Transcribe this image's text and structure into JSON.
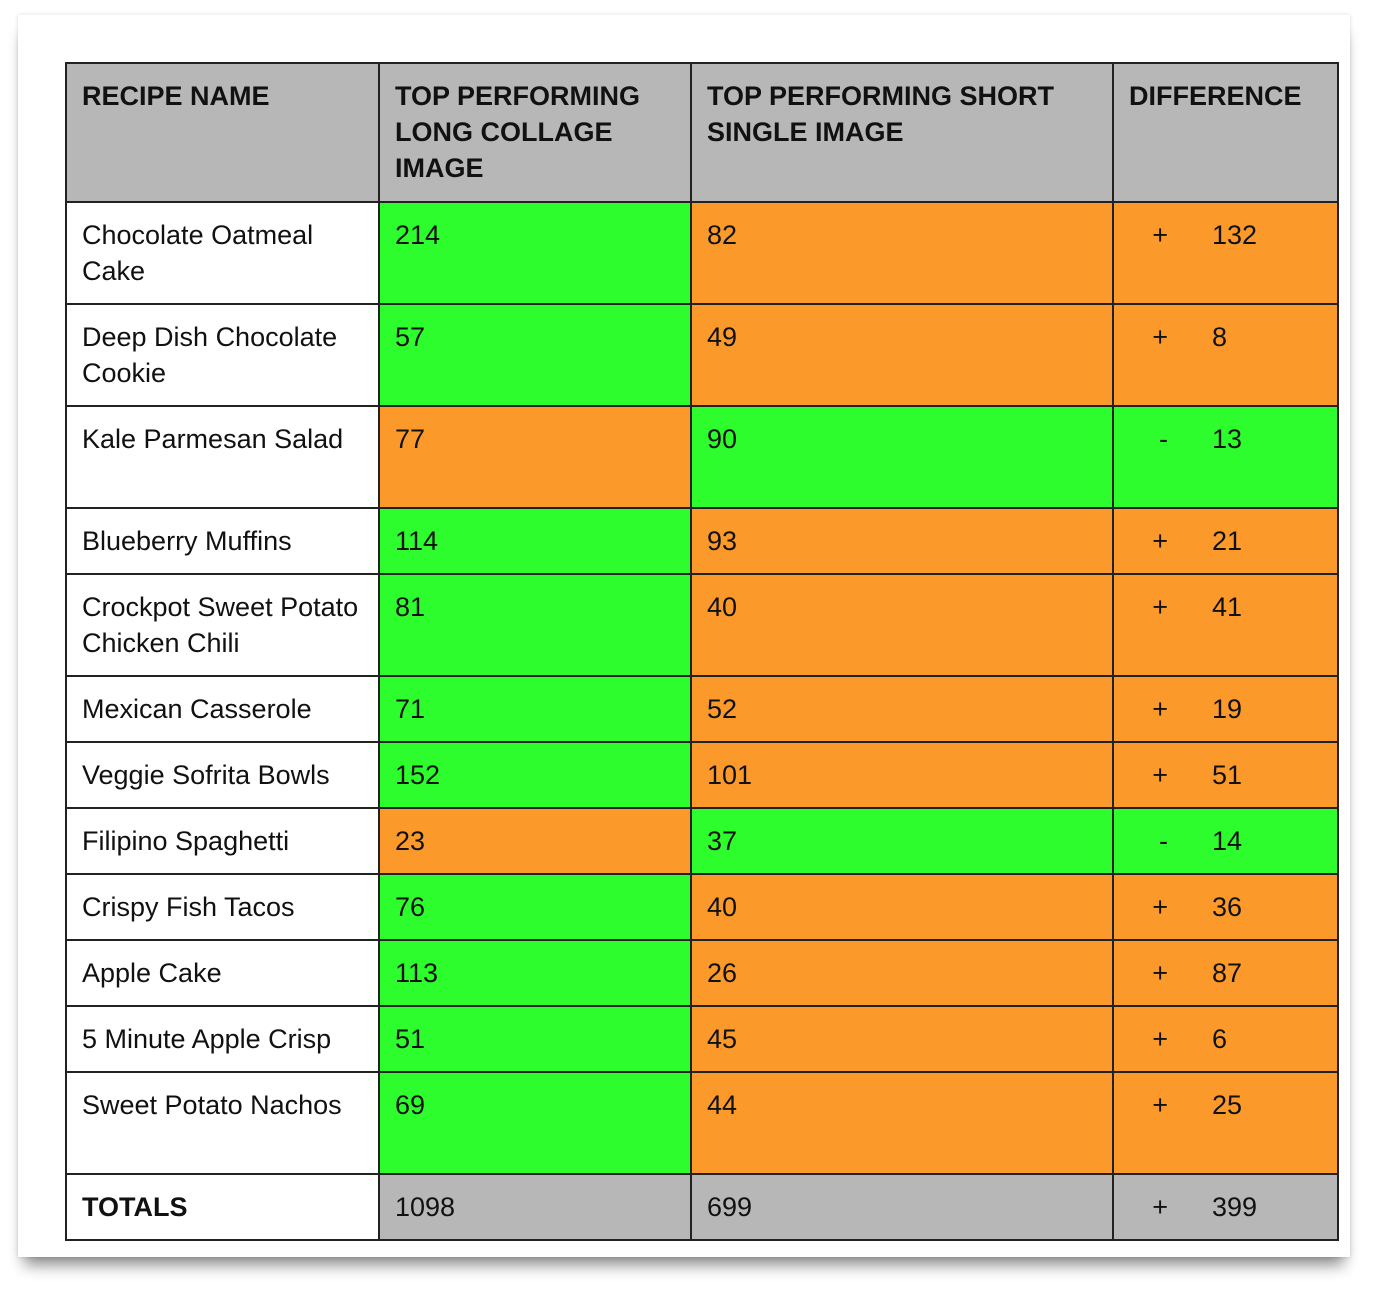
{
  "colors": {
    "header": "#b7b7b7",
    "higher": "#2dfc2d",
    "lower": "#fb9a2a"
  },
  "headers": [
    "RECIPE NAME",
    "TOP PERFORMING LONG COLLAGE IMAGE",
    "TOP PERFORMING SHORT SINGLE IMAGE",
    "DIFFERENCE"
  ],
  "rows": [
    {
      "name": "Chocolate Oatmeal Cake",
      "long": "214",
      "short": "82",
      "sign": "+",
      "diff": "132",
      "winner": "long"
    },
    {
      "name": "Deep Dish Chocolate Cookie",
      "long": "57",
      "short": "49",
      "sign": "+",
      "diff": "8",
      "winner": "long"
    },
    {
      "name": "Kale Parmesan Salad",
      "long": "77",
      "short": "90",
      "sign": "-",
      "diff": "13",
      "winner": "short"
    },
    {
      "name": "Blueberry Muffins",
      "long": "114",
      "short": "93",
      "sign": "+",
      "diff": "21",
      "winner": "long"
    },
    {
      "name": "Crockpot Sweet Potato Chicken Chili",
      "long": "81",
      "short": "40",
      "sign": "+",
      "diff": "41",
      "winner": "long"
    },
    {
      "name": "Mexican Casserole",
      "long": "71",
      "short": "52",
      "sign": "+",
      "diff": "19",
      "winner": "long"
    },
    {
      "name": "Veggie Sofrita Bowls",
      "long": "152",
      "short": "101",
      "sign": "+",
      "diff": "51",
      "winner": "long"
    },
    {
      "name": "Filipino Spaghetti",
      "long": "23",
      "short": "37",
      "sign": "-",
      "diff": "14",
      "winner": "short"
    },
    {
      "name": "Crispy Fish Tacos",
      "long": "76",
      "short": "40",
      "sign": "+",
      "diff": "36",
      "winner": "long"
    },
    {
      "name": "Apple Cake",
      "long": "113",
      "short": "26",
      "sign": "+",
      "diff": "87",
      "winner": "long"
    },
    {
      "name": "5 Minute Apple Crisp",
      "long": "51",
      "short": "45",
      "sign": "+",
      "diff": "6",
      "winner": "long"
    },
    {
      "name": "Sweet Potato Nachos",
      "long": "69",
      "short": "44",
      "sign": "+",
      "diff": "25",
      "winner": "long"
    }
  ],
  "totals": {
    "label": "TOTALS",
    "long": "1098",
    "short": "699",
    "sign": "+",
    "diff": "399"
  }
}
